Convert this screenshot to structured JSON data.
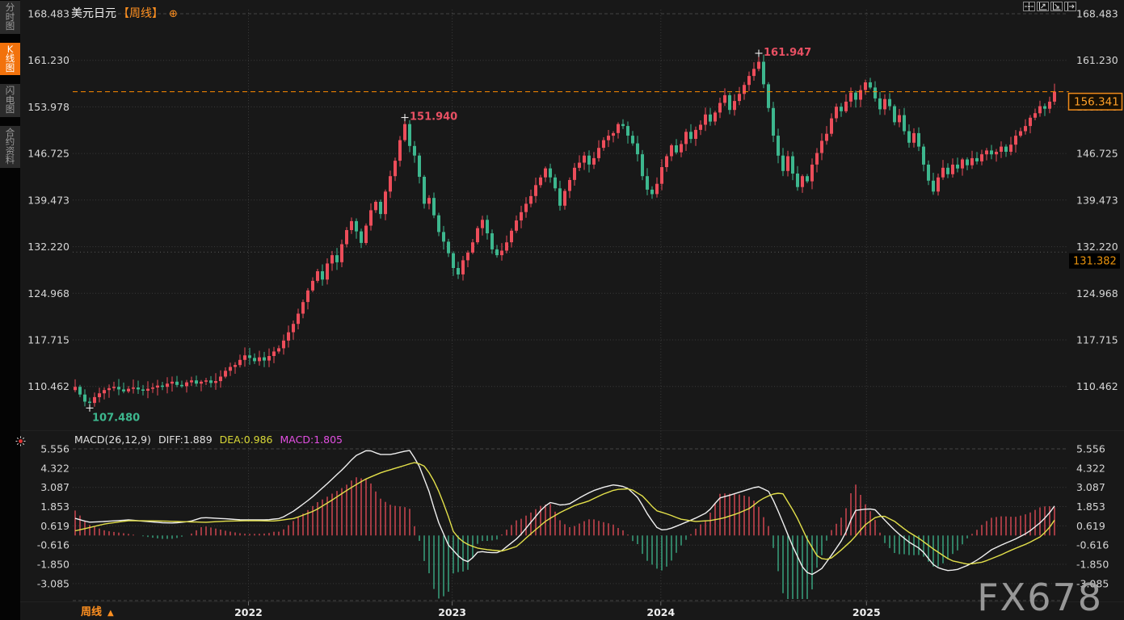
{
  "header": {
    "symbol": "美元日元",
    "period": "【周线】",
    "add_icon": "⊕"
  },
  "sidebar": {
    "tabs": [
      {
        "label": "分时图",
        "active": false
      },
      {
        "label": "K线图",
        "active": true
      },
      {
        "label": "闪电图",
        "active": false
      },
      {
        "label": "合约资料",
        "active": false
      }
    ]
  },
  "toolbar": {
    "buttons": [
      {
        "name": "crosshair-tool"
      },
      {
        "name": "axis-scale-left"
      },
      {
        "name": "axis-scale-right"
      },
      {
        "name": "jump-to-latest"
      }
    ]
  },
  "macd_header": {
    "name": "MACD(26,12,9)",
    "diff": "DIFF:1.889",
    "dea": "DEA:0.986",
    "macd": "MACD:1.805"
  },
  "footer": {
    "period": "周线",
    "arrow": "▲"
  },
  "watermark": "FX678",
  "colors": {
    "bg": "#181818",
    "up": "#ec4d5a",
    "down": "#3db78e",
    "accent_orange": "#ff8a00",
    "label_orange": "#ffa028",
    "tab_orange": "#f2720c",
    "diff_line": "#f0f0f0",
    "dea_line": "#e3e04a",
    "macd_value": "#e24fe2",
    "grid": "#3a3a3a",
    "axis_text": "#d6d6d6",
    "year_text": "#efefef",
    "annotation_red": "#e85063",
    "annotation_green": "#3db78e",
    "level_line": "#5a5a5a"
  },
  "chart_data": {
    "type": "candlestick+macd",
    "symbol": "USD/JPY weekly (美元日元 周线)",
    "price_axis_ticks": [
      "168.483",
      "161.230",
      "153.978",
      "146.725",
      "139.473",
      "132.220",
      "124.968",
      "117.715",
      "110.462"
    ],
    "macd_axis_ticks": [
      "5.556",
      "4.322",
      "3.087",
      "1.853",
      "0.619",
      "-0.616",
      "-1.850",
      "-3.085"
    ],
    "year_marks": [
      {
        "label": "2022",
        "t": 0.177
      },
      {
        "label": "2023",
        "t": 0.385
      },
      {
        "label": "2024",
        "t": 0.598
      },
      {
        "label": "2025",
        "t": 0.808
      }
    ],
    "first_open": 109.9,
    "weekly_closes": [
      110.4,
      109.2,
      108.1,
      107.9,
      108.8,
      109.4,
      109.9,
      110.2,
      110.4,
      110.0,
      109.7,
      110.1,
      110.3,
      110.0,
      109.8,
      110.1,
      110.3,
      110.6,
      110.4,
      110.9,
      111.2,
      110.7,
      110.5,
      111.1,
      111.4,
      110.9,
      111.2,
      111.4,
      111.0,
      111.3,
      112.0,
      112.9,
      113.5,
      113.8,
      114.6,
      115.3,
      114.9,
      114.4,
      115.0,
      114.5,
      115.2,
      115.9,
      116.4,
      117.6,
      118.9,
      120.2,
      121.8,
      123.6,
      125.4,
      126.9,
      128.4,
      127.1,
      129.6,
      130.9,
      129.8,
      132.6,
      134.8,
      136.2,
      134.6,
      132.8,
      135.5,
      137.9,
      139.2,
      137.3,
      140.8,
      143.2,
      145.6,
      148.8,
      151.3,
      147.9,
      146.4,
      143.1,
      138.9,
      139.8,
      137.1,
      134.5,
      133.0,
      131.2,
      128.9,
      127.9,
      130.1,
      131.3,
      132.9,
      135.1,
      136.4,
      134.3,
      131.8,
      130.9,
      131.6,
      132.9,
      134.7,
      136.3,
      137.6,
      138.9,
      140.1,
      141.8,
      143.0,
      144.4,
      143.0,
      141.3,
      138.6,
      140.9,
      142.6,
      144.5,
      145.3,
      146.4,
      145.0,
      146.0,
      147.6,
      148.8,
      149.5,
      149.9,
      151.3,
      151.0,
      149.5,
      148.3,
      146.6,
      143.2,
      141.1,
      140.4,
      142.0,
      144.6,
      146.3,
      148.0,
      146.9,
      148.2,
      150.1,
      149.0,
      150.4,
      151.2,
      152.8,
      151.7,
      153.1,
      154.6,
      155.8,
      153.5,
      154.9,
      156.0,
      157.4,
      158.8,
      159.9,
      161.0,
      157.5,
      153.8,
      149.5,
      146.4,
      144.0,
      146.3,
      143.6,
      141.5,
      143.2,
      142.4,
      145.0,
      146.8,
      148.7,
      149.8,
      152.2,
      154.0,
      153.3,
      154.8,
      156.2,
      155.1,
      156.6,
      157.8,
      157.0,
      155.3,
      153.6,
      155.2,
      154.1,
      151.6,
      152.7,
      150.2,
      148.4,
      149.9,
      147.8,
      145.0,
      142.5,
      140.8,
      143.0,
      144.5,
      143.5,
      145.0,
      144.4,
      145.8,
      144.9,
      146.0,
      145.5,
      146.6,
      147.2,
      146.6,
      147.0,
      147.8,
      147.0,
      148.1,
      149.5,
      150.2,
      151.0,
      152.3,
      153.0,
      154.1,
      153.7,
      154.8,
      156.341
    ],
    "markers": [
      {
        "kind": "low",
        "index": 3,
        "price": 107.48,
        "label": "107.480"
      },
      {
        "kind": "high",
        "index": 68,
        "price": 151.94,
        "label": "151.940"
      },
      {
        "kind": "high",
        "index": 141,
        "price": 161.947,
        "label": "161.947"
      }
    ],
    "last_price": {
      "value": 156.341,
      "label": "156.341"
    },
    "level_line": {
      "value": 131.382,
      "label": "131.382"
    },
    "macd": {
      "histogram_rule": "2*(DIFF-DEA)",
      "diff_keypoints": [
        [
          0,
          1.1
        ],
        [
          0.014,
          0.85
        ],
        [
          0.031,
          0.9
        ],
        [
          0.055,
          1.0
        ],
        [
          0.072,
          0.9
        ],
        [
          0.088,
          0.82
        ],
        [
          0.101,
          0.8
        ],
        [
          0.117,
          0.9
        ],
        [
          0.13,
          1.15
        ],
        [
          0.146,
          1.1
        ],
        [
          0.171,
          1.0
        ],
        [
          0.196,
          1.0
        ],
        [
          0.21,
          1.1
        ],
        [
          0.224,
          1.6
        ],
        [
          0.241,
          2.4
        ],
        [
          0.257,
          3.3
        ],
        [
          0.274,
          4.3
        ],
        [
          0.286,
          5.1
        ],
        [
          0.299,
          5.5
        ],
        [
          0.311,
          5.2
        ],
        [
          0.323,
          5.2
        ],
        [
          0.336,
          5.4
        ],
        [
          0.342,
          5.45
        ],
        [
          0.351,
          4.5
        ],
        [
          0.361,
          2.9
        ],
        [
          0.37,
          1.0
        ],
        [
          0.381,
          -0.6
        ],
        [
          0.394,
          -1.5
        ],
        [
          0.402,
          -1.7
        ],
        [
          0.412,
          -1.0
        ],
        [
          0.423,
          -1.1
        ],
        [
          0.433,
          -1.1
        ],
        [
          0.441,
          -0.7
        ],
        [
          0.453,
          -0.1
        ],
        [
          0.466,
          0.9
        ],
        [
          0.478,
          1.8
        ],
        [
          0.486,
          2.15
        ],
        [
          0.494,
          1.95
        ],
        [
          0.504,
          2.0
        ],
        [
          0.516,
          2.45
        ],
        [
          0.528,
          2.85
        ],
        [
          0.54,
          3.1
        ],
        [
          0.55,
          3.25
        ],
        [
          0.563,
          3.1
        ],
        [
          0.575,
          2.4
        ],
        [
          0.586,
          1.2
        ],
        [
          0.596,
          0.35
        ],
        [
          0.606,
          0.4
        ],
        [
          0.618,
          0.7
        ],
        [
          0.633,
          1.1
        ],
        [
          0.646,
          1.5
        ],
        [
          0.658,
          2.4
        ],
        [
          0.672,
          2.65
        ],
        [
          0.687,
          2.95
        ],
        [
          0.697,
          3.15
        ],
        [
          0.709,
          2.8
        ],
        [
          0.719,
          1.4
        ],
        [
          0.732,
          -0.6
        ],
        [
          0.744,
          -2.2
        ],
        [
          0.751,
          -2.55
        ],
        [
          0.762,
          -2.15
        ],
        [
          0.773,
          -1.2
        ],
        [
          0.785,
          -0.1
        ],
        [
          0.796,
          1.6
        ],
        [
          0.808,
          1.7
        ],
        [
          0.816,
          1.7
        ],
        [
          0.828,
          0.9
        ],
        [
          0.839,
          0.2
        ],
        [
          0.852,
          -0.45
        ],
        [
          0.864,
          -0.9
        ],
        [
          0.878,
          -2.0
        ],
        [
          0.89,
          -2.25
        ],
        [
          0.9,
          -2.2
        ],
        [
          0.912,
          -1.9
        ],
        [
          0.923,
          -1.5
        ],
        [
          0.936,
          -0.9
        ],
        [
          0.948,
          -0.55
        ],
        [
          0.961,
          -0.2
        ],
        [
          0.973,
          0.2
        ],
        [
          0.985,
          0.8
        ],
        [
          0.993,
          1.3
        ],
        [
          1,
          1.889
        ]
      ],
      "dea_keypoints": [
        [
          0,
          0.3
        ],
        [
          0.014,
          0.5
        ],
        [
          0.031,
          0.75
        ],
        [
          0.055,
          0.95
        ],
        [
          0.088,
          0.93
        ],
        [
          0.113,
          0.88
        ],
        [
          0.134,
          0.85
        ],
        [
          0.154,
          0.92
        ],
        [
          0.179,
          0.95
        ],
        [
          0.204,
          0.93
        ],
        [
          0.224,
          1.1
        ],
        [
          0.245,
          1.6
        ],
        [
          0.263,
          2.3
        ],
        [
          0.28,
          3.0
        ],
        [
          0.296,
          3.6
        ],
        [
          0.313,
          4.05
        ],
        [
          0.329,
          4.35
        ],
        [
          0.342,
          4.6
        ],
        [
          0.348,
          4.7
        ],
        [
          0.358,
          4.4
        ],
        [
          0.369,
          3.2
        ],
        [
          0.379,
          1.6
        ],
        [
          0.387,
          0.1
        ],
        [
          0.398,
          -0.5
        ],
        [
          0.41,
          -0.8
        ],
        [
          0.422,
          -0.92
        ],
        [
          0.436,
          -1.0
        ],
        [
          0.451,
          -0.7
        ],
        [
          0.466,
          0.15
        ],
        [
          0.481,
          0.95
        ],
        [
          0.496,
          1.5
        ],
        [
          0.511,
          1.95
        ],
        [
          0.524,
          2.2
        ],
        [
          0.539,
          2.65
        ],
        [
          0.552,
          2.95
        ],
        [
          0.567,
          3.0
        ],
        [
          0.58,
          2.5
        ],
        [
          0.593,
          1.6
        ],
        [
          0.606,
          1.35
        ],
        [
          0.618,
          1.05
        ],
        [
          0.633,
          0.9
        ],
        [
          0.648,
          0.95
        ],
        [
          0.661,
          1.1
        ],
        [
          0.676,
          1.4
        ],
        [
          0.689,
          1.75
        ],
        [
          0.7,
          2.3
        ],
        [
          0.712,
          2.65
        ],
        [
          0.722,
          2.75
        ],
        [
          0.736,
          1.3
        ],
        [
          0.748,
          -0.3
        ],
        [
          0.759,
          -1.45
        ],
        [
          0.77,
          -1.55
        ],
        [
          0.781,
          -1.0
        ],
        [
          0.794,
          -0.25
        ],
        [
          0.806,
          0.65
        ],
        [
          0.818,
          1.2
        ],
        [
          0.826,
          1.25
        ],
        [
          0.837,
          0.9
        ],
        [
          0.849,
          0.3
        ],
        [
          0.862,
          -0.2
        ],
        [
          0.877,
          -0.9
        ],
        [
          0.894,
          -1.6
        ],
        [
          0.912,
          -1.85
        ],
        [
          0.927,
          -1.7
        ],
        [
          0.945,
          -1.25
        ],
        [
          0.959,
          -0.85
        ],
        [
          0.973,
          -0.5
        ],
        [
          0.985,
          -0.1
        ],
        [
          0.993,
          0.35
        ],
        [
          1,
          0.986
        ]
      ]
    }
  }
}
